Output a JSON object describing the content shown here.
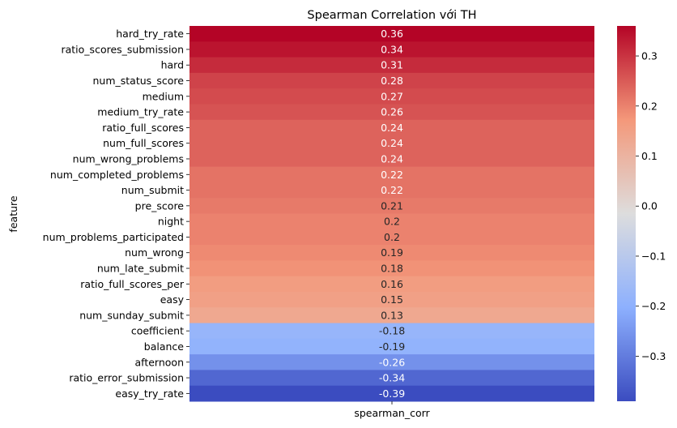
{
  "chart_data": {
    "type": "heatmap",
    "title": "Spearman Correlation với TH",
    "ylabel": "feature",
    "columns": [
      "spearman_corr"
    ],
    "rows": [
      "hard_try_rate",
      "ratio_scores_submission",
      "hard",
      "num_status_score",
      "medium",
      "medium_try_rate",
      "ratio_full_scores",
      "num_full_scores",
      "num_wrong_problems",
      "num_completed_problems",
      "num_submit",
      "pre_score",
      "night",
      "num_problems_participated",
      "num_wrong",
      "num_late_submit",
      "ratio_full_scores_per",
      "easy",
      "num_sunday_submit",
      "coefficient",
      "balance",
      "afternoon",
      "ratio_error_submission",
      "easy_try_rate"
    ],
    "values": [
      0.36,
      0.34,
      0.31,
      0.28,
      0.27,
      0.26,
      0.24,
      0.24,
      0.24,
      0.22,
      0.22,
      0.21,
      0.2,
      0.2,
      0.19,
      0.18,
      0.16,
      0.15,
      0.13,
      -0.18,
      -0.19,
      -0.26,
      -0.34,
      -0.39
    ],
    "colormap": "coolwarm",
    "vmin": -0.39,
    "vmax": 0.36,
    "colorbar_ticks": [
      0.3,
      0.2,
      0.1,
      0.0,
      -0.1,
      -0.2,
      -0.3
    ],
    "colorbar_tick_labels": [
      "0.3",
      "0.2",
      "0.1",
      "0.0",
      "−0.1",
      "−0.2",
      "−0.3"
    ]
  }
}
